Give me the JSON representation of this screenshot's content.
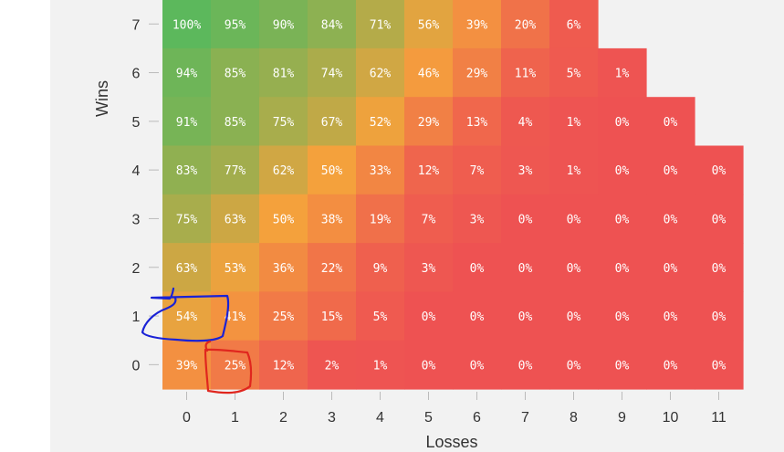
{
  "chart_data": {
    "type": "heatmap",
    "xlabel": "Losses",
    "ylabel": "Wins",
    "x_categories": [
      "0",
      "1",
      "2",
      "3",
      "4",
      "5",
      "6",
      "7",
      "8",
      "9",
      "10",
      "11"
    ],
    "y_categories": [
      "0",
      "1",
      "2",
      "3",
      "4",
      "5",
      "6",
      "7"
    ],
    "color_scale": {
      "low": "#ee5252",
      "mid": "#f4a13c",
      "high": "#5cb85c"
    },
    "rows": [
      {
        "wins": "7",
        "cells": [
          "100%",
          "95%",
          "90%",
          "84%",
          "71%",
          "56%",
          "39%",
          "20%",
          "6%"
        ]
      },
      {
        "wins": "6",
        "cells": [
          "94%",
          "85%",
          "81%",
          "74%",
          "62%",
          "46%",
          "29%",
          "11%",
          "5%",
          "1%"
        ]
      },
      {
        "wins": "5",
        "cells": [
          "91%",
          "85%",
          "75%",
          "67%",
          "52%",
          "29%",
          "13%",
          "4%",
          "1%",
          "0%",
          "0%"
        ]
      },
      {
        "wins": "4",
        "cells": [
          "83%",
          "77%",
          "62%",
          "50%",
          "33%",
          "12%",
          "7%",
          "3%",
          "1%",
          "0%",
          "0%",
          "0%"
        ]
      },
      {
        "wins": "3",
        "cells": [
          "75%",
          "63%",
          "50%",
          "38%",
          "19%",
          "7%",
          "3%",
          "0%",
          "0%",
          "0%",
          "0%",
          "0%"
        ]
      },
      {
        "wins": "2",
        "cells": [
          "63%",
          "53%",
          "36%",
          "22%",
          "9%",
          "3%",
          "0%",
          "0%",
          "0%",
          "0%",
          "0%",
          "0%"
        ]
      },
      {
        "wins": "1",
        "cells": [
          "54%",
          "41%",
          "25%",
          "15%",
          "5%",
          "0%",
          "0%",
          "0%",
          "0%",
          "0%",
          "0%",
          "0%"
        ]
      },
      {
        "wins": "0",
        "cells": [
          "39%",
          "25%",
          "12%",
          "2%",
          "1%",
          "0%",
          "0%",
          "0%",
          "0%",
          "0%",
          "0%",
          "0%"
        ]
      }
    ],
    "annotations": [
      {
        "shape": "freehand-loop",
        "color": "#1a22d6",
        "around_cell": {
          "wins": "1",
          "losses": "0"
        }
      },
      {
        "shape": "freehand-box",
        "color": "#e0261e",
        "around_cell": {
          "wins": "0",
          "losses": "1"
        }
      }
    ]
  }
}
